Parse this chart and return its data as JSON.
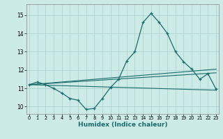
{
  "xlabel": "Humidex (Indice chaleur)",
  "bg_color": "#cceae6",
  "grid_color": "#b0d4d0",
  "line_color": "#1a6b6b",
  "spine_color": "#888888",
  "x_ticks": [
    0,
    1,
    2,
    3,
    4,
    5,
    6,
    7,
    8,
    9,
    10,
    11,
    12,
    13,
    14,
    15,
    16,
    17,
    18,
    19,
    20,
    21,
    22,
    23
  ],
  "y_ticks": [
    10,
    11,
    12,
    13,
    14,
    15
  ],
  "xlim": [
    -0.3,
    23.3
  ],
  "ylim": [
    9.6,
    15.6
  ],
  "line1_x": [
    0,
    1,
    2,
    3,
    4,
    5,
    6,
    7,
    8,
    9,
    10,
    11,
    12,
    13,
    14,
    15,
    16,
    17,
    18,
    19,
    20,
    21,
    22,
    23
  ],
  "line1_y": [
    11.2,
    11.35,
    11.2,
    11.0,
    10.75,
    10.45,
    10.35,
    9.85,
    9.9,
    10.45,
    11.05,
    11.5,
    12.5,
    13.0,
    14.6,
    15.1,
    14.6,
    14.0,
    13.0,
    12.45,
    12.05,
    11.5,
    11.8,
    10.95
  ],
  "line2_x": [
    0,
    23
  ],
  "line2_y": [
    11.2,
    10.9
  ],
  "line3_x": [
    0,
    23
  ],
  "line3_y": [
    11.2,
    11.85
  ],
  "line4_x": [
    0,
    23
  ],
  "line4_y": [
    11.2,
    12.05
  ]
}
